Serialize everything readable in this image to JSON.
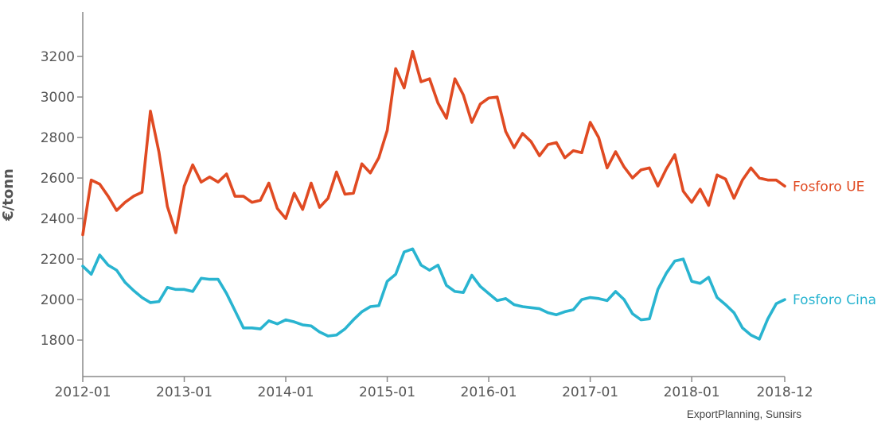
{
  "chart_data": {
    "type": "line",
    "ylabel": "€/tonn",
    "source": "ExportPlanning, Sunsirs",
    "ylim": [
      1620,
      3420
    ],
    "yticks": [
      1800,
      2000,
      2200,
      2400,
      2600,
      2800,
      3000,
      3200
    ],
    "x_start": "2012-01",
    "x_end": "2018-12",
    "x_tick_labels": [
      "2012-01",
      "2013-01",
      "2014-01",
      "2015-01",
      "2016-01",
      "2017-01",
      "2018-01",
      "2018-12"
    ],
    "grid": false,
    "legend": "inline labels at line ends",
    "series": [
      {
        "name": "Fosforo UE",
        "color": "#e04a22",
        "values": [
          2320,
          2590,
          2570,
          2510,
          2440,
          2480,
          2510,
          2530,
          2930,
          2730,
          2460,
          2330,
          2560,
          2665,
          2580,
          2605,
          2580,
          2620,
          2510,
          2510,
          2480,
          2490,
          2575,
          2450,
          2400,
          2525,
          2445,
          2575,
          2455,
          2500,
          2630,
          2520,
          2525,
          2670,
          2625,
          2700,
          2835,
          3140,
          3045,
          3225,
          3075,
          3090,
          2970,
          2895,
          3090,
          3010,
          2875,
          2965,
          2995,
          3000,
          2830,
          2750,
          2820,
          2780,
          2710,
          2765,
          2775,
          2700,
          2735,
          2725,
          2875,
          2800,
          2650,
          2730,
          2655,
          2600,
          2640,
          2650,
          2560,
          2645,
          2715,
          2535,
          2480,
          2545,
          2465,
          2615,
          2595,
          2500,
          2590,
          2650,
          2600,
          2590,
          2590,
          2560
        ]
      },
      {
        "name": "Fosforo Cina",
        "color": "#29b4d0",
        "values": [
          2165,
          2125,
          2220,
          2170,
          2145,
          2085,
          2045,
          2010,
          1985,
          1990,
          2060,
          2050,
          2050,
          2040,
          2105,
          2100,
          2100,
          2030,
          1945,
          1860,
          1860,
          1855,
          1895,
          1880,
          1900,
          1890,
          1875,
          1870,
          1840,
          1820,
          1825,
          1855,
          1900,
          1940,
          1965,
          1970,
          2090,
          2125,
          2235,
          2250,
          2170,
          2145,
          2170,
          2070,
          2040,
          2035,
          2120,
          2065,
          2030,
          1995,
          2005,
          1975,
          1965,
          1960,
          1955,
          1935,
          1925,
          1940,
          1950,
          2000,
          2010,
          2005,
          1995,
          2040,
          2000,
          1930,
          1900,
          1905,
          2050,
          2130,
          2190,
          2200,
          2090,
          2080,
          2110,
          2010,
          1975,
          1935,
          1860,
          1825,
          1805,
          1905,
          1980,
          2000
        ]
      }
    ]
  }
}
